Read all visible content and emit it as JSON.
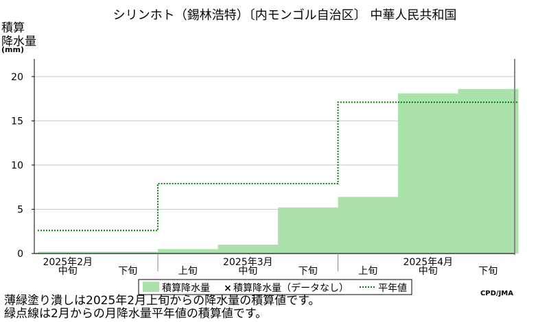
{
  "chart_data": {
    "type": "area",
    "title": "シリンホト（錫林浩特）〔内モンゴル自治区〕 中華人民共和国",
    "ylabel_lines": [
      "積算",
      "降水量",
      "(mm)"
    ],
    "ylim": [
      0,
      22
    ],
    "yticks": [
      0,
      5,
      10,
      15,
      20
    ],
    "grid": true,
    "x_periods": [
      "中旬",
      "下旬",
      "上旬",
      "中旬",
      "下旬",
      "上旬",
      "中旬",
      "下旬"
    ],
    "x_months": [
      {
        "label": "2025年2月",
        "period_index": 0
      },
      {
        "label": "2025年3月",
        "period_index": 3
      },
      {
        "label": "2025年4月",
        "period_index": 6
      }
    ],
    "month_boundaries": [
      2,
      5
    ],
    "series": [
      {
        "name": "積算降水量",
        "kind": "bars",
        "color": "#aae2aa",
        "values": [
          0.2,
          0.2,
          0.5,
          1.0,
          5.2,
          6.4,
          18.1,
          18.6
        ]
      },
      {
        "name": "平年値",
        "kind": "step",
        "color": "#008000",
        "values": [
          2.6,
          2.6,
          7.9,
          7.9,
          7.9,
          17.1,
          17.1,
          17.1
        ]
      }
    ],
    "legend": {
      "placement": "bottom",
      "items": [
        {
          "label": "積算降水量",
          "symbol": "box"
        },
        {
          "label": "積算降水量（データなし）",
          "symbol": "x"
        },
        {
          "label": "平年値",
          "symbol": "dotted-line"
        }
      ]
    },
    "credit": "CPD/JMA"
  },
  "notes": [
    "薄緑塗り潰しは2025年2月上旬からの降水量の積算値です。",
    "緑点線は2月からの月降水量平年値の積算値です。"
  ]
}
